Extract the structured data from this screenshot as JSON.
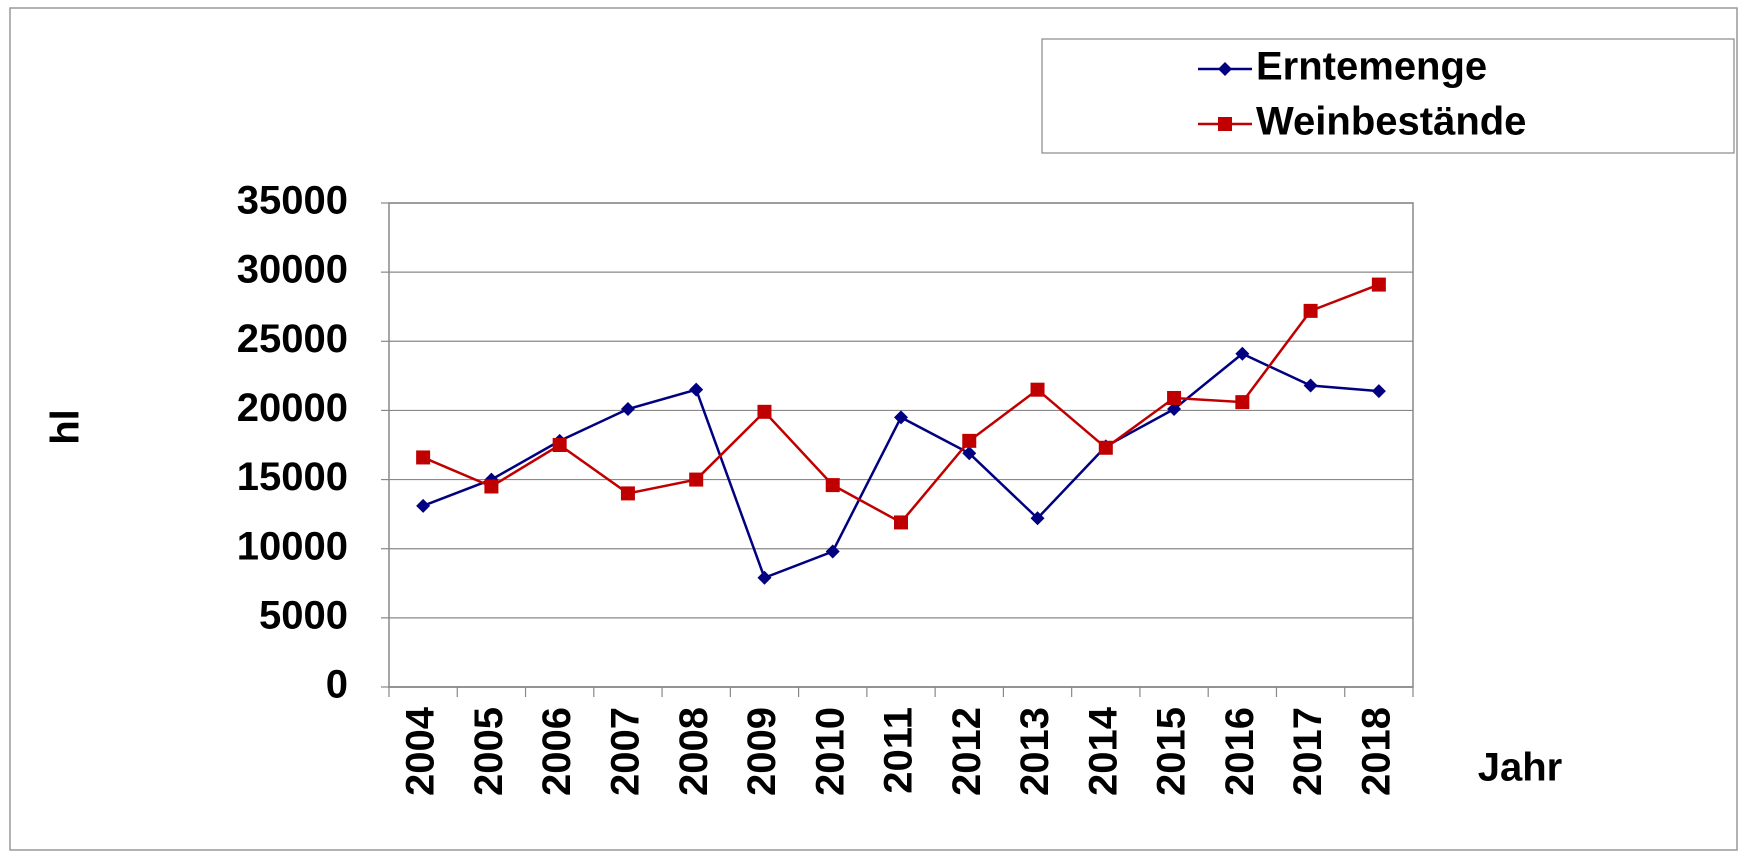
{
  "chart_data": {
    "type": "line",
    "x_label": "Jahr",
    "y_label": "hl",
    "categories": [
      "2004",
      "2005",
      "2006",
      "2007",
      "2008",
      "2009",
      "2010",
      "2011",
      "2012",
      "2013",
      "2014",
      "2015",
      "2016",
      "2017",
      "2018"
    ],
    "series": [
      {
        "name": "Erntemenge",
        "color": "#000080",
        "marker": "diamond",
        "values": [
          13100,
          15000,
          17800,
          20100,
          21500,
          7900,
          9800,
          19500,
          16900,
          12200,
          17400,
          20100,
          24100,
          21800,
          21400
        ]
      },
      {
        "name": "Weinbestände",
        "color": "#c00000",
        "marker": "square",
        "values": [
          16600,
          14500,
          17500,
          14000,
          15000,
          19900,
          14600,
          11900,
          17800,
          21500,
          17300,
          20900,
          20600,
          27200,
          29100
        ]
      }
    ],
    "ylim": [
      0,
      35000
    ],
    "yticks": [
      0,
      5000,
      10000,
      15000,
      20000,
      25000,
      30000,
      35000
    ],
    "grid": true,
    "legend": "top-right"
  }
}
